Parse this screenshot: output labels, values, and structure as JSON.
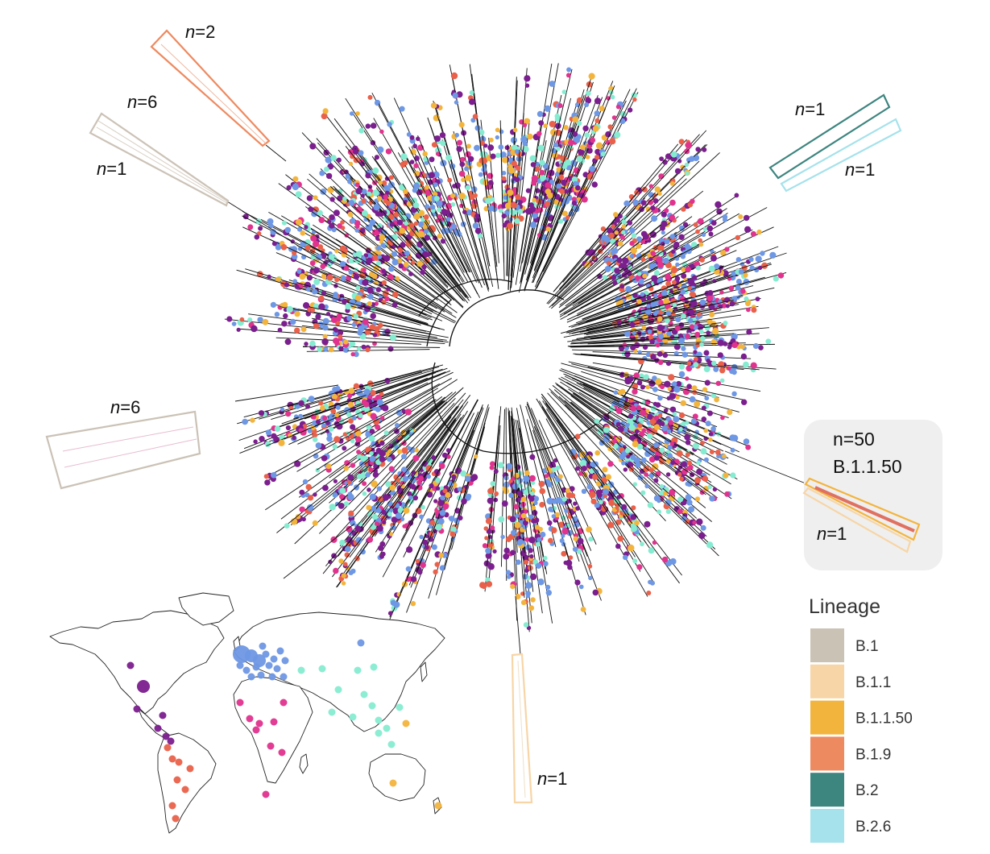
{
  "clade_labels": [
    {
      "id": "c1",
      "n": "2"
    },
    {
      "id": "c2",
      "n": "6"
    },
    {
      "id": "c3",
      "n": "1"
    },
    {
      "id": "c4",
      "n": "6"
    },
    {
      "id": "c5",
      "n": "1"
    },
    {
      "id": "c6",
      "n": "1"
    },
    {
      "id": "c7",
      "n": "1"
    },
    {
      "id": "c8",
      "n": "50",
      "lineage": "B.1.1.50"
    },
    {
      "id": "c9",
      "n": "1"
    }
  ],
  "n_prefix": "n",
  "n_eq": "=",
  "legend": {
    "title": "Lineage",
    "items": [
      {
        "label": "B.1",
        "color": "#cbc2b6"
      },
      {
        "label": "B.1.1",
        "color": "#f7d5a6"
      },
      {
        "label": "B.1.1.50",
        "color": "#f3b43d"
      },
      {
        "label": "B.1.9",
        "color": "#ee8a60"
      },
      {
        "label": "B.2",
        "color": "#3d857f"
      },
      {
        "label": "B.2.6",
        "color": "#a5e2eb"
      }
    ]
  },
  "tip_colors": {
    "purple": "#7b1e8e",
    "blue": "#6e97e4",
    "mint": "#86ecd1",
    "orange": "#f3b43d",
    "red": "#e9614a",
    "pink": "#e0338e"
  },
  "map_points": [
    {
      "region": "europe",
      "color": "blue",
      "count": 18
    },
    {
      "region": "north-america",
      "color": "purple",
      "count": 4
    },
    {
      "region": "central-america",
      "color": "purple",
      "count": 3
    },
    {
      "region": "south-america",
      "color": "red",
      "count": 8
    },
    {
      "region": "africa",
      "color": "pink",
      "count": 9
    },
    {
      "region": "asia",
      "color": "mint",
      "count": 14
    },
    {
      "region": "oceania",
      "color": "orange",
      "count": 3
    }
  ]
}
